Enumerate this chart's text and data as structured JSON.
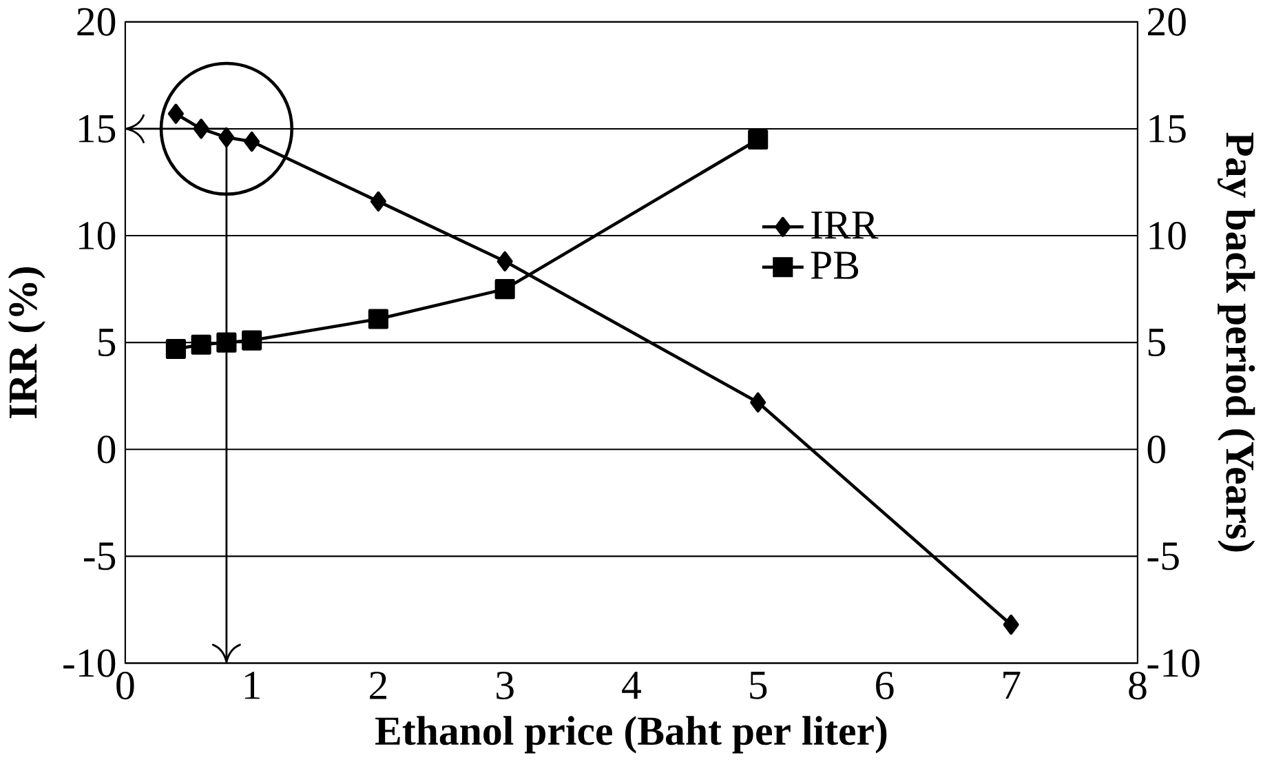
{
  "chart_data": {
    "type": "line",
    "xlabel": "Ethanol price (Baht per liter)",
    "ylabel": "IRR (%)",
    "y2label": "Pay back period (Years)",
    "xlim": [
      0,
      8
    ],
    "xticks": [
      0,
      1,
      2,
      3,
      4,
      5,
      6,
      7,
      8
    ],
    "ylim": [
      -10,
      20
    ],
    "yticks": [
      -10,
      -5,
      0,
      5,
      10,
      15,
      20
    ],
    "y2lim": [
      -10,
      20
    ],
    "y2ticks": [
      -10,
      -5,
      0,
      5,
      10,
      15,
      20
    ],
    "grid": "y",
    "legend": "right",
    "line_style": "solid",
    "series": [
      {
        "name": "IRR",
        "color": "#000000",
        "marker": "diamond",
        "x": [
          0.4,
          0.6,
          0.8,
          1,
          2,
          3,
          5,
          7
        ],
        "values": [
          15.7,
          15.0,
          14.6,
          14.4,
          11.6,
          8.8,
          2.2,
          -8.2
        ]
      },
      {
        "name": "PB",
        "color": "#000000",
        "marker": "square",
        "axis": "y2",
        "x": [
          0.4,
          0.6,
          0.8,
          1,
          2,
          3,
          5
        ],
        "values": [
          4.7,
          4.9,
          5.0,
          5.1,
          6.1,
          7.5,
          14.5
        ]
      }
    ],
    "ref_lines": [
      {
        "axis": "x",
        "value": 0.8
      },
      {
        "axis": "y",
        "value": 15
      }
    ]
  }
}
